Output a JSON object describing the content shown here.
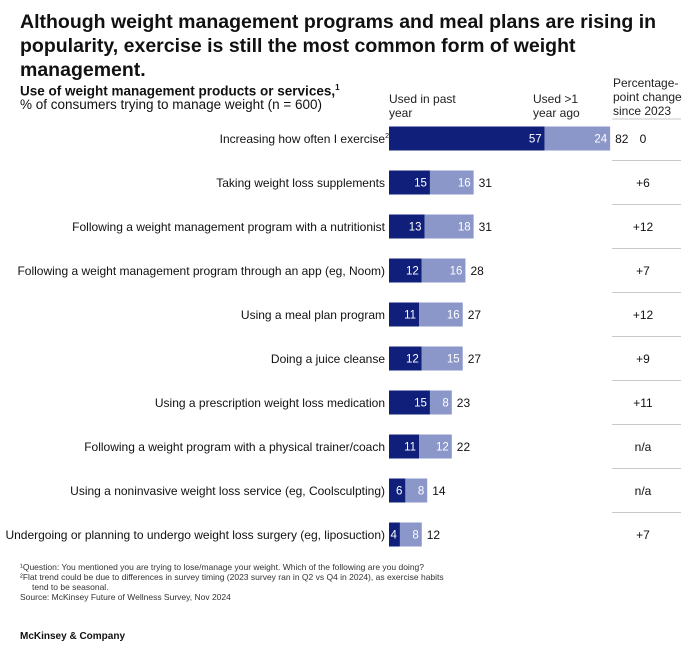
{
  "headline": "Although weight management programs and meal plans are rising in popularity, exercise is still the most common form of weight management.",
  "subtitle": "Use of weight management products or services,",
  "subtitle_sup": "1",
  "subtitle_desc": "% of consumers trying to manage weight (n = 600)",
  "columns": {
    "used_past_year": "Used in past year",
    "used_over_1_year": "Used >1 year ago",
    "pp_change": "Percentage-point change since 2023"
  },
  "colors": {
    "past_year": "#0f1f7a",
    "over_1_year": "#8b97c8"
  },
  "chart_data": {
    "type": "bar",
    "orientation": "horizontal",
    "stacked": true,
    "categories": [
      "Increasing how often I exercise",
      "Taking weight loss supplements",
      "Following a weight management program with a nutritionist",
      "Following a weight management program through an app (eg, Noom)",
      "Using a meal plan program",
      "Doing a juice cleanse",
      "Using a prescription weight loss medication",
      "Following a weight program with a physical trainer/coach",
      "Using a noninvasive weight loss service (eg, Coolsculpting)",
      "Undergoing or planning to undergo weight loss surgery (eg, liposuction)"
    ],
    "category_superscripts": [
      "2",
      "",
      "",
      "",
      "",
      "",
      "",
      "",
      "",
      ""
    ],
    "series": [
      {
        "name": "Used in past year",
        "values": [
          57,
          15,
          13,
          12,
          11,
          12,
          15,
          11,
          6,
          4
        ]
      },
      {
        "name": "Used >1 year ago",
        "values": [
          24,
          16,
          18,
          16,
          16,
          15,
          8,
          12,
          8,
          8
        ]
      }
    ],
    "totals": [
      82,
      31,
      31,
      28,
      27,
      27,
      23,
      22,
      14,
      12
    ],
    "pp_change": [
      "0",
      "+6",
      "+12",
      "+7",
      "+12",
      "+9",
      "+11",
      "n/a",
      "n/a",
      "+7"
    ],
    "xlim": [
      0,
      82
    ],
    "grid": false,
    "legend": "column headers"
  },
  "footnotes": [
    "¹Question: You mentioned you are trying to lose/manage your weight. Which of the following are you doing?",
    "²Flat trend could be due to differences in survey timing (2023 survey ran in Q2 vs Q4 in 2024), as exercise habits",
    "tend to be seasonal.",
    "Source: McKinsey Future of Wellness Survey, Nov 2024"
  ],
  "brand": "McKinsey & Company"
}
